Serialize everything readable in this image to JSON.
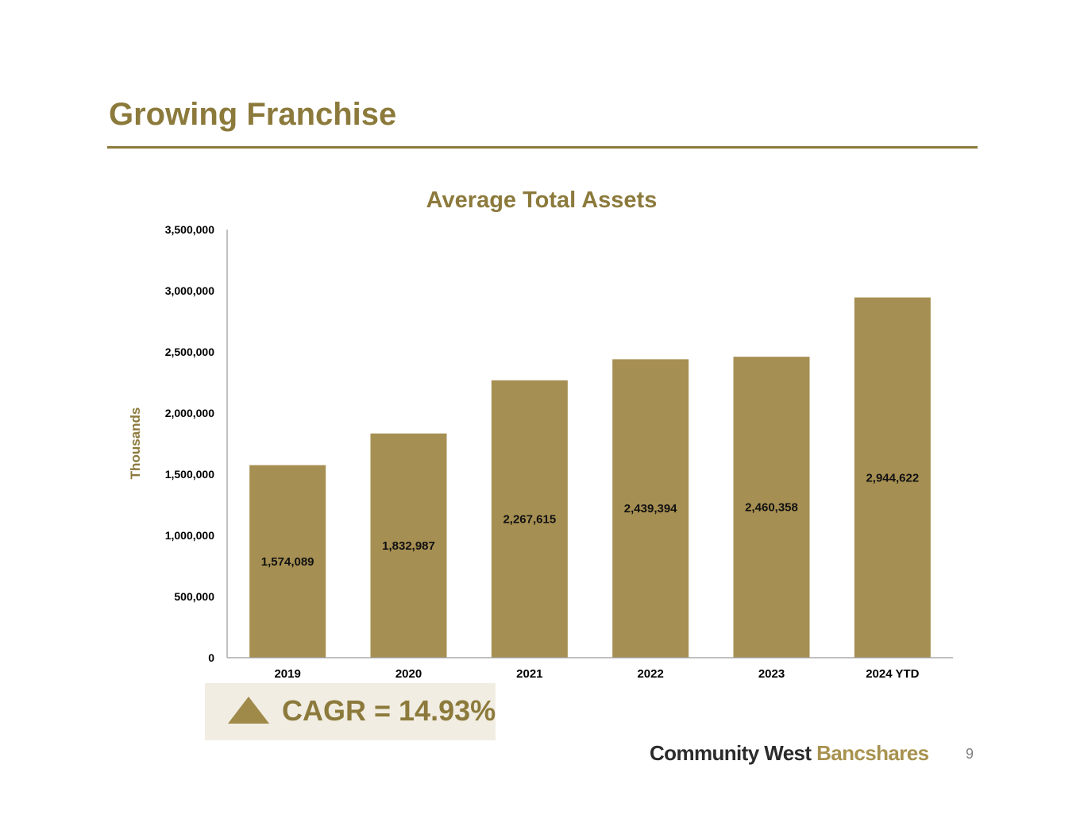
{
  "slide": {
    "title": "Growing Franchise",
    "page_number": "9"
  },
  "colors": {
    "accent": "#8c7a3c",
    "bar": "#a68f52",
    "cagr_bg": "#f1ede2"
  },
  "chart_data": {
    "type": "bar",
    "title": "Average Total Assets",
    "ylabel": "Thousands",
    "xlabel": "",
    "categories": [
      "2019",
      "2020",
      "2021",
      "2022",
      "2023",
      "2024 YTD"
    ],
    "values": [
      1574089,
      1832987,
      2267615,
      2439394,
      2460358,
      2944622
    ],
    "value_labels": [
      "1,574,089",
      "1,832,987",
      "2,267,615",
      "2,439,394",
      "2,460,358",
      "2,944,622"
    ],
    "ylim": [
      0,
      3500000
    ],
    "yticks": [
      0,
      500000,
      1000000,
      1500000,
      2000000,
      2500000,
      3000000,
      3500000
    ],
    "ytick_labels": [
      "0",
      "500,000",
      "1,000,000",
      "1,500,000",
      "2,000,000",
      "2,500,000",
      "3,000,000",
      "3,500,000"
    ],
    "grid": false,
    "legend": false
  },
  "cagr": {
    "label": "CAGR = 14.93%",
    "icon": "triangle-up-icon"
  },
  "brand": {
    "part1": "Community West",
    "part2": "Bancshares"
  }
}
